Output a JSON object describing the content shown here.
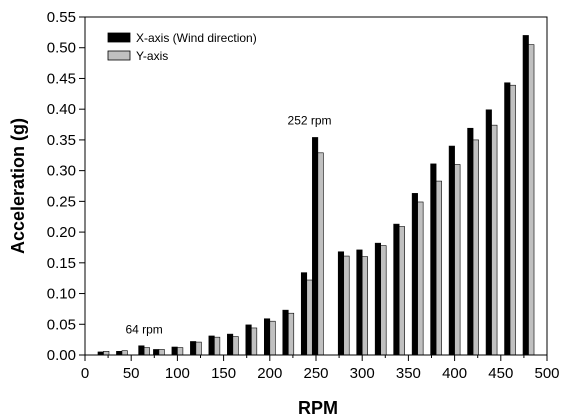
{
  "chart_data": {
    "type": "bar",
    "xlabel": "RPM",
    "ylabel": "Acceleration (g)",
    "xlim": [
      0,
      500
    ],
    "ylim": [
      0,
      0.55
    ],
    "xticks": [
      "0",
      "50",
      "100",
      "150",
      "200",
      "250",
      "300",
      "350",
      "400",
      "450",
      "500"
    ],
    "yticks": [
      "0.00",
      "0.05",
      "0.10",
      "0.15",
      "0.20",
      "0.25",
      "0.30",
      "0.35",
      "0.40",
      "0.45",
      "0.50",
      "0.55"
    ],
    "grid": false,
    "legend_position": "top-left",
    "x": [
      20,
      40,
      64,
      80,
      100,
      120,
      140,
      160,
      180,
      200,
      220,
      240,
      252,
      280,
      300,
      320,
      340,
      360,
      380,
      400,
      420,
      440,
      460,
      480
    ],
    "series": [
      {
        "name": "X-axis (Wind direction)",
        "color": "#000000",
        "values": [
          0.005,
          0.006,
          0.015,
          0.009,
          0.013,
          0.022,
          0.031,
          0.034,
          0.049,
          0.059,
          0.073,
          0.134,
          0.354,
          0.168,
          0.171,
          0.182,
          0.213,
          0.263,
          0.311,
          0.34,
          0.369,
          0.399,
          0.443,
          0.52
        ]
      },
      {
        "name": "Y-axis",
        "color": "#c0c0c0",
        "values": [
          0.006,
          0.007,
          0.012,
          0.009,
          0.012,
          0.021,
          0.029,
          0.03,
          0.044,
          0.055,
          0.068,
          0.122,
          0.329,
          0.161,
          0.16,
          0.178,
          0.209,
          0.249,
          0.283,
          0.31,
          0.35,
          0.374,
          0.439,
          0.505
        ]
      }
    ],
    "annotations": [
      {
        "text": "64 rpm",
        "x": 64,
        "y": 0.035
      },
      {
        "text": "252 rpm",
        "x": 243,
        "y": 0.375
      }
    ]
  }
}
